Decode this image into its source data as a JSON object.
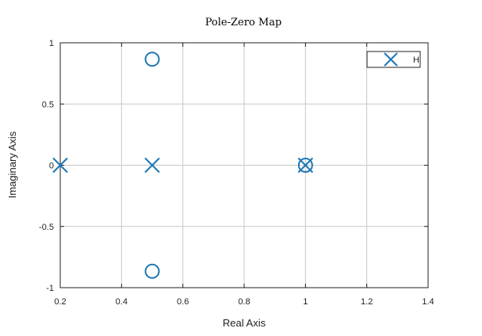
{
  "chart_data": {
    "type": "scatter",
    "title": "Pole-Zero Map",
    "xlabel": "Real Axis",
    "ylabel": "Imaginary Axis",
    "xlim": [
      0.2,
      1.4
    ],
    "ylim": [
      -1,
      1
    ],
    "xticks": [
      0.2,
      0.4,
      0.6,
      0.8,
      1,
      1.2,
      1.4
    ],
    "xtick_labels": [
      "0.2",
      "0.4",
      "0.6",
      "0.8",
      "1",
      "1.2",
      "1.4"
    ],
    "yticks": [
      1,
      0.5,
      0,
      -0.5,
      -1
    ],
    "ytick_labels": [
      "1",
      "0.5",
      "0",
      "-0.5",
      "-1"
    ],
    "grid": true,
    "legend": {
      "position": "top-right",
      "entries": [
        {
          "label": "H",
          "marker": "x"
        }
      ]
    },
    "series": [
      {
        "name": "H",
        "color": "#1f77b4",
        "poles": [
          {
            "x": 0.2,
            "y": 0
          },
          {
            "x": 0.5,
            "y": 0
          },
          {
            "x": 1.0,
            "y": 0
          }
        ],
        "zeros": [
          {
            "x": 0.5,
            "y": 0.866
          },
          {
            "x": 0.5,
            "y": -0.866
          },
          {
            "x": 1.0,
            "y": 0
          }
        ]
      }
    ]
  }
}
